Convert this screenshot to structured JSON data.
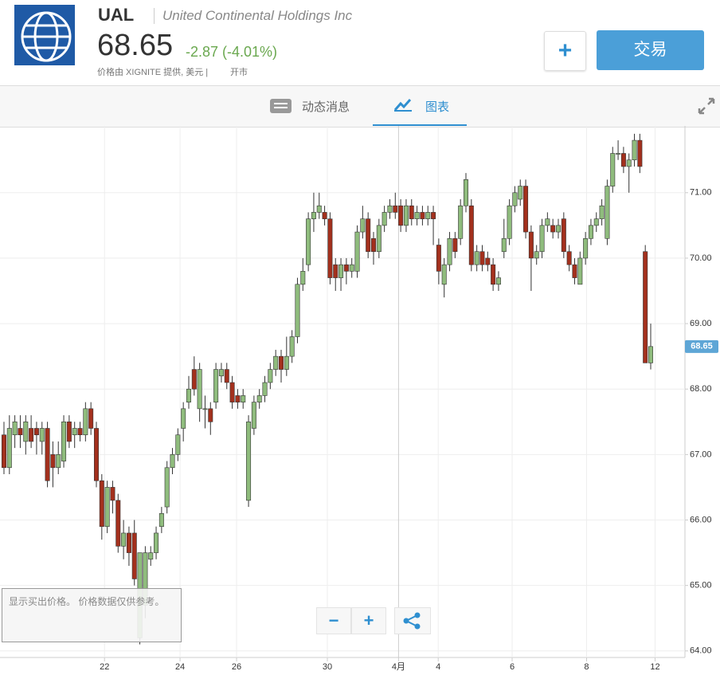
{
  "header": {
    "ticker": "UAL",
    "company": "United Continental Holdings Inc",
    "price": "68.65",
    "change": "-2.87 (-4.01%)",
    "source": "价格由 XIGNITE 提供, 美元 |",
    "status": "开市",
    "add_button": "+",
    "trade_button": "交易"
  },
  "tabs": [
    "动态消息",
    "图表"
  ],
  "note": "显示买出价格。 价格数据仅供参考。",
  "zoom": [
    "−",
    "+"
  ],
  "chart_data": {
    "type": "candlestick",
    "ylim": [
      63.9,
      72.02
    ],
    "yticks": [
      {
        "value": 64,
        "label": "64.00"
      },
      {
        "value": 65,
        "label": "65.00"
      },
      {
        "value": 66,
        "label": "66.00"
      },
      {
        "value": 67,
        "label": "67.00"
      },
      {
        "value": 68,
        "label": "68.00"
      },
      {
        "value": 69,
        "label": "69.00"
      },
      {
        "value": 70,
        "label": "70.00"
      },
      {
        "value": 71,
        "label": "71.00"
      }
    ],
    "xlim": [
      -0.73,
      125.3
    ],
    "xticks": [
      {
        "value": 18.5,
        "label": "22"
      },
      {
        "value": 32.4,
        "label": "24"
      },
      {
        "value": 42.8,
        "label": "26"
      },
      {
        "value": 59.5,
        "label": "30"
      },
      {
        "value": 72.6,
        "label": "4月"
      },
      {
        "value": 79.9,
        "label": "4"
      },
      {
        "value": 93.5,
        "label": "6"
      },
      {
        "value": 107.2,
        "label": "8"
      },
      {
        "value": 119.8,
        "label": "12"
      }
    ],
    "last_price": {
      "value": 68.65,
      "label": "68.65"
    },
    "up_color": "#8fbc7d",
    "down_color": "#a3301d",
    "grid": true,
    "values": [
      [
        67.3,
        67.5,
        66.7,
        66.8
      ],
      [
        66.8,
        67.6,
        66.7,
        67.4
      ],
      [
        67.3,
        67.6,
        67.1,
        67.5
      ],
      [
        67.4,
        67.6,
        67.1,
        67.3
      ],
      [
        67.2,
        67.6,
        67.0,
        67.5
      ],
      [
        67.4,
        67.6,
        67.1,
        67.2
      ],
      [
        67.4,
        67.5,
        67.0,
        67.3
      ],
      [
        67.2,
        67.5,
        67.0,
        67.4
      ],
      [
        67.4,
        67.5,
        66.5,
        66.6
      ],
      [
        67.0,
        67.2,
        66.5,
        66.8
      ],
      [
        66.8,
        67.2,
        66.7,
        67.0
      ],
      [
        66.9,
        67.6,
        66.8,
        67.5
      ],
      [
        67.5,
        67.6,
        67.1,
        67.2
      ],
      [
        67.3,
        67.5,
        67.1,
        67.4
      ],
      [
        67.4,
        67.5,
        67.2,
        67.3
      ],
      [
        67.3,
        67.8,
        67.2,
        67.7
      ],
      [
        67.7,
        67.8,
        67.3,
        67.4
      ],
      [
        67.4,
        67.5,
        66.5,
        66.6
      ],
      [
        66.6,
        66.7,
        65.7,
        65.9
      ],
      [
        65.9,
        66.6,
        65.8,
        66.5
      ],
      [
        66.5,
        66.6,
        66.1,
        66.3
      ],
      [
        66.3,
        66.4,
        65.5,
        65.6
      ],
      [
        65.6,
        66.0,
        65.4,
        65.8
      ],
      [
        65.8,
        65.9,
        65.3,
        65.5
      ],
      [
        65.8,
        66.0,
        65.0,
        65.1
      ],
      [
        64.2,
        65.5,
        64.1,
        65.5
      ],
      [
        64.7,
        65.6,
        64.5,
        65.5
      ],
      [
        65.4,
        65.6,
        65.3,
        65.5
      ],
      [
        65.5,
        65.9,
        65.4,
        65.8
      ],
      [
        65.9,
        66.2,
        65.8,
        66.1
      ],
      [
        66.2,
        66.9,
        66.1,
        66.8
      ],
      [
        66.8,
        67.1,
        66.7,
        67.0
      ],
      [
        67.0,
        67.4,
        66.9,
        67.3
      ],
      [
        67.4,
        67.8,
        67.2,
        67.7
      ],
      [
        67.8,
        68.2,
        67.7,
        68.0
      ],
      [
        68.3,
        68.5,
        67.9,
        68.0
      ],
      [
        67.7,
        68.4,
        67.5,
        68.3
      ],
      [
        67.7,
        67.9,
        67.4,
        67.7
      ],
      [
        67.7,
        67.8,
        67.3,
        67.5
      ],
      [
        67.8,
        68.4,
        67.7,
        68.3
      ],
      [
        68.2,
        68.4,
        68.1,
        68.3
      ],
      [
        68.3,
        68.4,
        68.0,
        68.1
      ],
      [
        68.1,
        68.2,
        67.7,
        67.8
      ],
      [
        67.9,
        68.0,
        67.7,
        67.8
      ],
      [
        67.8,
        68.0,
        67.7,
        67.9
      ],
      [
        66.3,
        67.6,
        66.2,
        67.5
      ],
      [
        67.4,
        67.9,
        67.3,
        67.8
      ],
      [
        67.8,
        68.0,
        67.7,
        67.9
      ],
      [
        67.9,
        68.2,
        67.8,
        68.1
      ],
      [
        68.1,
        68.4,
        68.0,
        68.3
      ],
      [
        68.3,
        68.6,
        68.2,
        68.5
      ],
      [
        68.5,
        68.6,
        68.1,
        68.3
      ],
      [
        68.3,
        68.8,
        68.2,
        68.5
      ],
      [
        68.5,
        68.9,
        68.4,
        68.8
      ],
      [
        68.8,
        69.7,
        68.7,
        69.6
      ],
      [
        69.6,
        70.0,
        69.5,
        69.8
      ],
      [
        69.9,
        70.7,
        69.8,
        70.6
      ],
      [
        70.6,
        71.0,
        70.4,
        70.7
      ],
      [
        70.7,
        71.0,
        70.6,
        70.8
      ],
      [
        70.7,
        70.8,
        70.5,
        70.6
      ],
      [
        70.6,
        70.7,
        69.6,
        69.7
      ],
      [
        69.9,
        70.0,
        69.5,
        69.7
      ],
      [
        69.7,
        70.0,
        69.5,
        69.9
      ],
      [
        69.9,
        70.0,
        69.6,
        69.8
      ],
      [
        69.8,
        70.0,
        69.7,
        69.9
      ],
      [
        69.8,
        70.5,
        69.7,
        70.4
      ],
      [
        70.4,
        70.8,
        70.3,
        70.6
      ],
      [
        70.6,
        70.7,
        70.0,
        70.1
      ],
      [
        70.3,
        70.4,
        69.9,
        70.1
      ],
      [
        70.1,
        70.6,
        70.0,
        70.5
      ],
      [
        70.5,
        70.8,
        70.4,
        70.7
      ],
      [
        70.7,
        70.9,
        70.6,
        70.8
      ],
      [
        70.8,
        71.0,
        70.6,
        70.7
      ],
      [
        70.8,
        70.9,
        70.4,
        70.5
      ],
      [
        70.5,
        70.9,
        70.4,
        70.8
      ],
      [
        70.8,
        70.9,
        70.5,
        70.6
      ],
      [
        70.6,
        70.8,
        70.5,
        70.7
      ],
      [
        70.7,
        70.8,
        70.5,
        70.6
      ],
      [
        70.6,
        70.8,
        70.5,
        70.7
      ],
      [
        70.7,
        70.8,
        70.2,
        70.6
      ],
      [
        70.2,
        70.3,
        69.6,
        69.8
      ],
      [
        69.6,
        70.0,
        69.4,
        69.9
      ],
      [
        69.9,
        70.4,
        69.8,
        70.3
      ],
      [
        70.3,
        70.4,
        70.0,
        70.1
      ],
      [
        70.3,
        70.9,
        70.2,
        70.8
      ],
      [
        70.8,
        71.3,
        70.7,
        71.2
      ],
      [
        70.8,
        70.9,
        69.8,
        69.9
      ],
      [
        69.9,
        70.2,
        69.8,
        70.1
      ],
      [
        70.1,
        70.2,
        69.8,
        69.9
      ],
      [
        70.0,
        70.1,
        69.8,
        69.9
      ],
      [
        69.9,
        70.0,
        69.5,
        69.6
      ],
      [
        69.6,
        69.8,
        69.5,
        69.7
      ],
      [
        70.1,
        70.6,
        70.0,
        70.3
      ],
      [
        70.3,
        70.9,
        70.2,
        70.8
      ],
      [
        70.8,
        71.1,
        70.7,
        71.0
      ],
      [
        70.9,
        71.2,
        70.8,
        71.1
      ],
      [
        71.1,
        71.2,
        70.3,
        70.4
      ],
      [
        70.4,
        70.5,
        69.5,
        70.0
      ],
      [
        70.0,
        70.2,
        69.9,
        70.1
      ],
      [
        70.1,
        70.6,
        70.0,
        70.5
      ],
      [
        70.5,
        70.7,
        70.4,
        70.6
      ],
      [
        70.5,
        70.6,
        70.3,
        70.4
      ],
      [
        70.4,
        70.6,
        70.3,
        70.5
      ],
      [
        70.6,
        70.7,
        70.0,
        70.1
      ],
      [
        70.1,
        70.2,
        69.8,
        69.9
      ],
      [
        69.9,
        70.0,
        69.6,
        69.7
      ],
      [
        69.6,
        70.1,
        69.6,
        70.0
      ],
      [
        70.0,
        70.4,
        69.9,
        70.3
      ],
      [
        70.3,
        70.6,
        70.2,
        70.5
      ],
      [
        70.5,
        70.7,
        70.4,
        70.6
      ],
      [
        70.6,
        70.9,
        70.5,
        70.8
      ],
      [
        70.3,
        71.2,
        70.2,
        71.1
      ],
      [
        71.1,
        71.7,
        71.0,
        71.6
      ],
      [
        71.6,
        71.8,
        71.5,
        71.6
      ],
      [
        71.6,
        71.7,
        71.3,
        71.4
      ],
      [
        71.4,
        71.6,
        71.0,
        71.5
      ],
      [
        71.5,
        71.9,
        71.4,
        71.8
      ],
      [
        71.8,
        71.9,
        71.3,
        71.4
      ],
      [
        70.1,
        70.2,
        68.4,
        68.4
      ],
      [
        68.4,
        69.0,
        68.3,
        68.65
      ]
    ]
  }
}
